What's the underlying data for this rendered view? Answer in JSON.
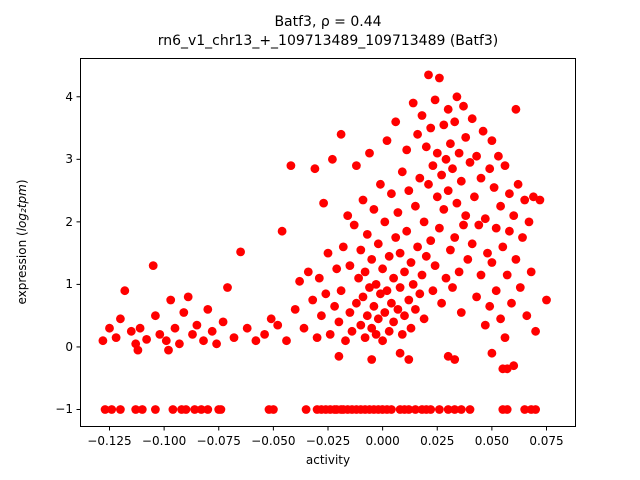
{
  "chart_data": {
    "type": "scatter",
    "title": "Batf3, ρ = 0.44",
    "subtitle": "rn6_v1_chr13_+_109713489_109713489 (Batf3)",
    "xlabel": "activity",
    "ylabel": "expression (log₂tpm)",
    "ylabel_parts": {
      "pre": "expression (",
      "math": "log₂tpm",
      "post": ")"
    },
    "marker_color": "#ff0000",
    "marker_radius": 4.4,
    "grid": false,
    "legend": "none",
    "xlim": [
      -0.1385,
      0.0885
    ],
    "ylim": [
      -1.28,
      4.62
    ],
    "xticks": [
      -0.125,
      -0.1,
      -0.075,
      -0.05,
      -0.025,
      0.0,
      0.025,
      0.05,
      0.075
    ],
    "xtick_labels": [
      "−0.125",
      "−0.100",
      "−0.075",
      "−0.050",
      "−0.025",
      "0.000",
      "0.025",
      "0.050",
      "0.075"
    ],
    "yticks": [
      -1,
      0,
      1,
      2,
      3,
      4
    ],
    "ytick_labels": [
      "−1",
      "0",
      "1",
      "2",
      "3",
      "4"
    ],
    "points": [
      [
        -0.127,
        -1
      ],
      [
        -0.124,
        -1
      ],
      [
        -0.12,
        -1
      ],
      [
        -0.113,
        -1
      ],
      [
        -0.11,
        -1
      ],
      [
        -0.104,
        -1
      ],
      [
        -0.096,
        -1
      ],
      [
        -0.092,
        -1
      ],
      [
        -0.09,
        -1
      ],
      [
        -0.086,
        -1
      ],
      [
        -0.083,
        -1
      ],
      [
        -0.08,
        -1
      ],
      [
        -0.075,
        -1
      ],
      [
        -0.074,
        -1
      ],
      [
        -0.052,
        -1
      ],
      [
        -0.05,
        -1
      ],
      [
        -0.035,
        -1
      ],
      [
        -0.03,
        -1
      ],
      [
        -0.028,
        -1
      ],
      [
        -0.026,
        -1
      ],
      [
        -0.024,
        -1
      ],
      [
        -0.022,
        -1
      ],
      [
        -0.021,
        -1
      ],
      [
        -0.019,
        -1
      ],
      [
        -0.018,
        -1
      ],
      [
        -0.016,
        -1
      ],
      [
        -0.014,
        -1
      ],
      [
        -0.012,
        -1
      ],
      [
        -0.01,
        -1
      ],
      [
        -0.008,
        -1
      ],
      [
        -0.006,
        -1
      ],
      [
        -0.004,
        -1
      ],
      [
        -0.002,
        -1
      ],
      [
        0.0,
        -1
      ],
      [
        0.002,
        -1
      ],
      [
        0.004,
        -1
      ],
      [
        0.008,
        -1
      ],
      [
        0.01,
        -1
      ],
      [
        0.012,
        -1
      ],
      [
        0.015,
        -1
      ],
      [
        0.018,
        -1
      ],
      [
        0.02,
        -1
      ],
      [
        0.022,
        -1
      ],
      [
        0.026,
        -1
      ],
      [
        0.03,
        -1
      ],
      [
        0.033,
        -1
      ],
      [
        0.036,
        -1
      ],
      [
        0.04,
        -1
      ],
      [
        0.055,
        -1
      ],
      [
        0.057,
        -1
      ],
      [
        0.065,
        -1
      ],
      [
        0.068,
        -1
      ],
      [
        0.07,
        -1
      ],
      [
        -0.128,
        0.1
      ],
      [
        -0.125,
        0.3
      ],
      [
        -0.122,
        0.15
      ],
      [
        -0.12,
        0.45
      ],
      [
        -0.118,
        0.9
      ],
      [
        -0.115,
        0.25
      ],
      [
        -0.113,
        0.05
      ],
      [
        -0.111,
        0.3
      ],
      [
        -0.108,
        0.12
      ],
      [
        -0.105,
        1.3
      ],
      [
        -0.104,
        0.5
      ],
      [
        -0.102,
        0.2
      ],
      [
        -0.099,
        0.1
      ],
      [
        -0.097,
        0.75
      ],
      [
        -0.095,
        0.3
      ],
      [
        -0.093,
        0.05
      ],
      [
        -0.091,
        0.55
      ],
      [
        -0.089,
        0.8
      ],
      [
        -0.087,
        0.2
      ],
      [
        -0.085,
        0.35
      ],
      [
        -0.082,
        0.1
      ],
      [
        -0.08,
        0.6
      ],
      [
        -0.078,
        0.25
      ],
      [
        -0.076,
        0.05
      ],
      [
        -0.073,
        0.4
      ],
      [
        -0.071,
        0.95
      ],
      [
        -0.068,
        0.15
      ],
      [
        -0.065,
        1.52
      ],
      [
        -0.062,
        0.3
      ],
      [
        -0.058,
        0.1
      ],
      [
        -0.054,
        0.2
      ],
      [
        -0.051,
        0.45
      ],
      [
        -0.048,
        0.35
      ],
      [
        -0.046,
        1.85
      ],
      [
        -0.044,
        0.1
      ],
      [
        -0.042,
        2.9
      ],
      [
        -0.04,
        0.6
      ],
      [
        -0.038,
        1.05
      ],
      [
        -0.036,
        0.3
      ],
      [
        -0.034,
        1.2
      ],
      [
        -0.032,
        0.75
      ],
      [
        -0.031,
        2.85
      ],
      [
        -0.03,
        0.15
      ],
      [
        -0.029,
        1.1
      ],
      [
        -0.028,
        0.5
      ],
      [
        -0.027,
        2.3
      ],
      [
        -0.026,
        0.85
      ],
      [
        -0.025,
        1.5
      ],
      [
        -0.024,
        0.2
      ],
      [
        -0.023,
        3.0
      ],
      [
        -0.022,
        0.65
      ],
      [
        -0.021,
        1.25
      ],
      [
        -0.02,
        0.4
      ],
      [
        -0.019,
        3.4
      ],
      [
        -0.019,
        0.9
      ],
      [
        -0.018,
        1.6
      ],
      [
        -0.017,
        0.1
      ],
      [
        -0.016,
        2.1
      ],
      [
        -0.015,
        0.55
      ],
      [
        -0.015,
        1.3
      ],
      [
        -0.014,
        0.25
      ],
      [
        -0.013,
        1.95
      ],
      [
        -0.012,
        0.7
      ],
      [
        -0.012,
        2.9
      ],
      [
        -0.011,
        1.1
      ],
      [
        -0.01,
        0.35
      ],
      [
        -0.01,
        1.55
      ],
      [
        -0.009,
        0.8
      ],
      [
        -0.009,
        2.35
      ],
      [
        -0.008,
        0.15
      ],
      [
        -0.008,
        1.2
      ],
      [
        -0.007,
        0.5
      ],
      [
        -0.007,
        1.8
      ],
      [
        -0.006,
        0.95
      ],
      [
        -0.006,
        3.1
      ],
      [
        -0.005,
        0.3
      ],
      [
        -0.005,
        1.4
      ],
      [
        -0.004,
        0.65
      ],
      [
        -0.004,
        2.2
      ],
      [
        -0.003,
        1.0
      ],
      [
        -0.003,
        0.2
      ],
      [
        -0.002,
        1.65
      ],
      [
        -0.002,
        0.45
      ],
      [
        -0.001,
        2.6
      ],
      [
        -0.001,
        0.85
      ],
      [
        0.0,
        1.25
      ],
      [
        0.0,
        0.1
      ],
      [
        0.001,
        0.55
      ],
      [
        0.001,
        2.0
      ],
      [
        0.002,
        0.9
      ],
      [
        0.002,
        3.3
      ],
      [
        0.003,
        0.25
      ],
      [
        0.003,
        1.45
      ],
      [
        0.004,
        0.7
      ],
      [
        0.004,
        2.45
      ],
      [
        0.005,
        1.1
      ],
      [
        0.005,
        0.4
      ],
      [
        0.006,
        1.75
      ],
      [
        0.006,
        3.6
      ],
      [
        0.007,
        0.6
      ],
      [
        0.007,
        2.15
      ],
      [
        0.008,
        0.95
      ],
      [
        0.008,
        1.5
      ],
      [
        0.009,
        0.2
      ],
      [
        0.009,
        2.8
      ],
      [
        0.01,
        1.2
      ],
      [
        0.01,
        0.5
      ],
      [
        0.011,
        1.85
      ],
      [
        0.011,
        3.15
      ],
      [
        0.012,
        0.75
      ],
      [
        0.012,
        2.5
      ],
      [
        0.013,
        1.35
      ],
      [
        0.013,
        0.3
      ],
      [
        0.014,
        3.9
      ],
      [
        0.014,
        1.0
      ],
      [
        0.015,
        2.25
      ],
      [
        0.015,
        0.6
      ],
      [
        0.016,
        3.4
      ],
      [
        0.016,
        1.6
      ],
      [
        0.017,
        0.85
      ],
      [
        0.017,
        2.7
      ],
      [
        0.018,
        1.15
      ],
      [
        0.018,
        3.7
      ],
      [
        0.019,
        0.45
      ],
      [
        0.019,
        2.0
      ],
      [
        0.02,
        1.45
      ],
      [
        0.02,
        3.2
      ],
      [
        0.021,
        4.35
      ],
      [
        0.021,
        2.6
      ],
      [
        0.022,
        1.7
      ],
      [
        0.022,
        3.5
      ],
      [
        0.023,
        0.9
      ],
      [
        0.023,
        2.9
      ],
      [
        0.024,
        3.95
      ],
      [
        0.024,
        1.3
      ],
      [
        0.025,
        2.4
      ],
      [
        0.025,
        3.1
      ],
      [
        0.026,
        4.3
      ],
      [
        0.026,
        1.9
      ],
      [
        0.027,
        2.75
      ],
      [
        0.027,
        0.7
      ],
      [
        0.028,
        3.55
      ],
      [
        0.028,
        2.2
      ],
      [
        0.029,
        1.1
      ],
      [
        0.029,
        3.0
      ],
      [
        0.03,
        3.8
      ],
      [
        0.03,
        2.5
      ],
      [
        0.031,
        1.55
      ],
      [
        0.031,
        3.25
      ],
      [
        0.032,
        0.95
      ],
      [
        0.032,
        2.85
      ],
      [
        0.033,
        3.6
      ],
      [
        0.033,
        1.75
      ],
      [
        0.034,
        2.3
      ],
      [
        0.034,
        4.0
      ],
      [
        0.035,
        1.2
      ],
      [
        0.035,
        3.1
      ],
      [
        0.036,
        2.65
      ],
      [
        0.036,
        0.55
      ],
      [
        0.037,
        3.85
      ],
      [
        0.037,
        1.95
      ],
      [
        0.038,
        2.1
      ],
      [
        0.038,
        3.35
      ],
      [
        0.039,
        1.4
      ],
      [
        0.04,
        2.95
      ],
      [
        0.041,
        3.65
      ],
      [
        0.041,
        1.65
      ],
      [
        0.042,
        2.4
      ],
      [
        0.043,
        0.8
      ],
      [
        0.043,
        3.05
      ],
      [
        0.044,
        1.95
      ],
      [
        0.045,
        2.7
      ],
      [
        0.045,
        1.15
      ],
      [
        0.046,
        3.45
      ],
      [
        0.047,
        0.35
      ],
      [
        0.047,
        2.05
      ],
      [
        0.048,
        1.5
      ],
      [
        0.049,
        2.85
      ],
      [
        0.049,
        0.65
      ],
      [
        0.05,
        3.3
      ],
      [
        0.05,
        1.35
      ],
      [
        0.051,
        2.55
      ],
      [
        0.052,
        0.9
      ],
      [
        0.052,
        1.9
      ],
      [
        0.053,
        3.05
      ],
      [
        0.054,
        0.45
      ],
      [
        0.054,
        2.25
      ],
      [
        0.055,
        1.6
      ],
      [
        0.056,
        2.9
      ],
      [
        0.056,
        0.15
      ],
      [
        0.057,
        1.15
      ],
      [
        0.058,
        2.45
      ],
      [
        0.058,
        1.85
      ],
      [
        0.059,
        0.7
      ],
      [
        0.06,
        2.1
      ],
      [
        0.061,
        3.8
      ],
      [
        0.061,
        1.4
      ],
      [
        0.062,
        2.6
      ],
      [
        0.063,
        0.95
      ],
      [
        0.064,
        1.75
      ],
      [
        0.065,
        2.35
      ],
      [
        0.066,
        0.5
      ],
      [
        0.067,
        2.0
      ],
      [
        0.068,
        1.2
      ],
      [
        0.069,
        2.4
      ],
      [
        0.07,
        0.25
      ],
      [
        0.072,
        2.35
      ],
      [
        0.075,
        0.75
      ],
      [
        -0.112,
        -0.05
      ],
      [
        -0.098,
        -0.05
      ],
      [
        -0.02,
        -0.15
      ],
      [
        -0.005,
        -0.2
      ],
      [
        0.008,
        -0.1
      ],
      [
        0.012,
        -0.2
      ],
      [
        0.03,
        -0.15
      ],
      [
        0.033,
        -0.2
      ],
      [
        0.05,
        -0.1
      ],
      [
        0.055,
        -0.35
      ],
      [
        0.057,
        -0.35
      ],
      [
        0.06,
        -0.3
      ]
    ]
  }
}
